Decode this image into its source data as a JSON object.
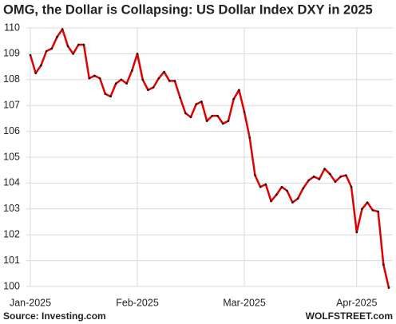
{
  "chart_data": {
    "type": "line",
    "title": "OMG, the Dollar is Collapsing: US Dollar Index DXY in 2025",
    "source": "Source: Investing.com",
    "credit": "WOLFSTREET.com",
    "categories": [
      "Jan-2025",
      null,
      null,
      null,
      null,
      null,
      null,
      null,
      null,
      null,
      null,
      null,
      null,
      null,
      null,
      null,
      null,
      null,
      null,
      null,
      "Feb-2025",
      null,
      null,
      null,
      null,
      null,
      null,
      null,
      null,
      null,
      null,
      null,
      null,
      null,
      null,
      null,
      null,
      null,
      null,
      null,
      "Mar-2025",
      null,
      null,
      null,
      null,
      null,
      null,
      null,
      null,
      null,
      null,
      null,
      null,
      null,
      null,
      null,
      null,
      null,
      null,
      null,
      null,
      "Apr-2025",
      null,
      null,
      null,
      null,
      null,
      null
    ],
    "series": [
      {
        "name": "US Dollar Index DXY",
        "color": "#e00000",
        "values": [
          108.95,
          108.25,
          108.55,
          109.1,
          109.2,
          109.65,
          109.95,
          109.3,
          109.0,
          109.35,
          109.35,
          108.05,
          108.15,
          108.05,
          107.45,
          107.35,
          107.85,
          108.0,
          107.85,
          108.35,
          109.0,
          108.0,
          107.6,
          107.7,
          108.05,
          108.3,
          107.95,
          107.95,
          107.3,
          106.7,
          106.55,
          107.05,
          107.15,
          106.4,
          106.6,
          106.6,
          106.3,
          106.4,
          107.25,
          107.6,
          106.75,
          105.75,
          104.3,
          103.85,
          103.95,
          103.3,
          103.55,
          103.85,
          103.7,
          103.25,
          103.4,
          103.8,
          104.1,
          104.25,
          104.15,
          104.55,
          104.35,
          104.05,
          104.25,
          104.3,
          103.85,
          102.1,
          103.0,
          103.25,
          102.95,
          102.9,
          100.85,
          99.95
        ]
      }
    ],
    "ylim": [
      99.8,
      110.2
    ],
    "yticks": [
      100,
      101,
      102,
      103,
      104,
      105,
      106,
      107,
      108,
      109,
      110
    ],
    "grid": true
  }
}
